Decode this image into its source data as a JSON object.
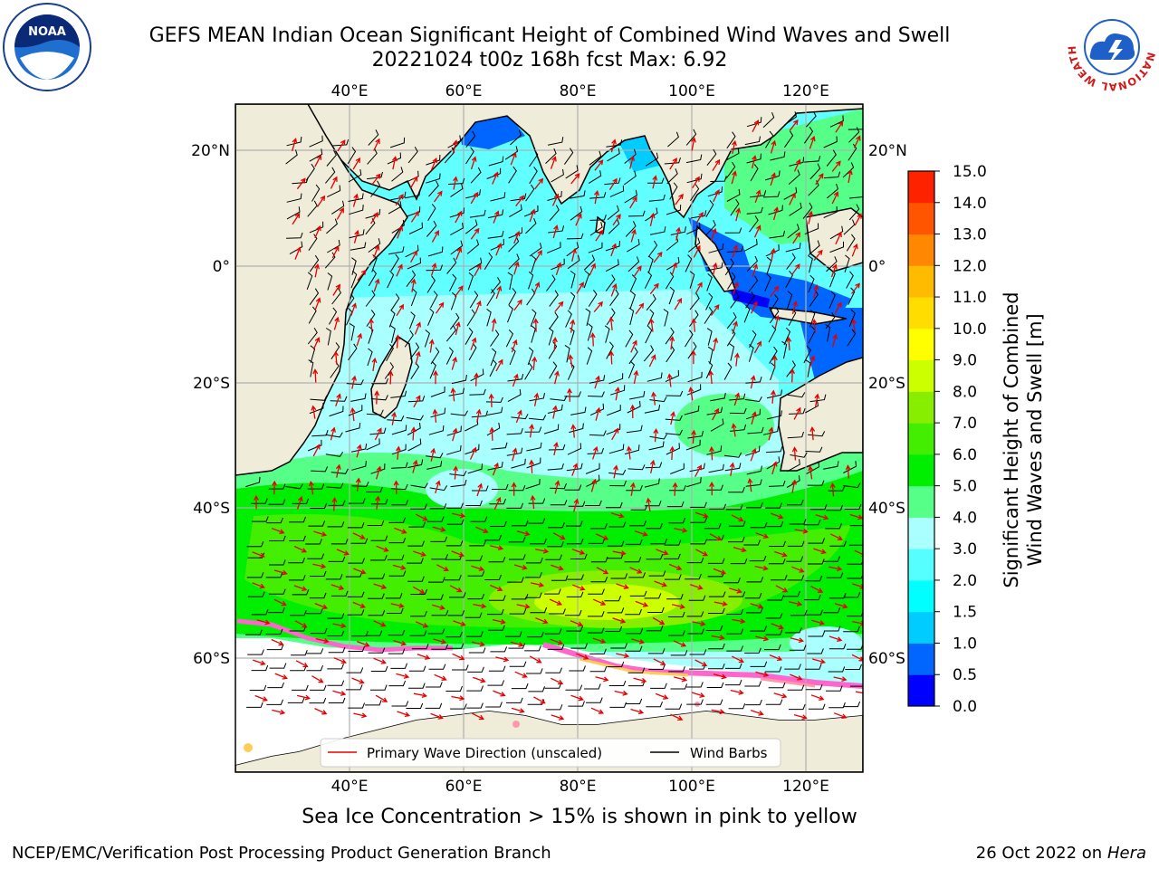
{
  "title": {
    "line1": "GEFS MEAN Indian Ocean Significant Height of Combined Wind Waves and Swell",
    "line2": "20221024 t00z 168h fcst   Max: 6.92"
  },
  "logos": {
    "left": {
      "icon": "noaa-logo",
      "text": "NOAA",
      "ring_text": "NATIONAL OCEANIC AND ATMOSPHERIC ADMINISTRATION · U.S. DEPARTMENT OF COMMERCE"
    },
    "right": {
      "icon": "nws-logo",
      "ring_text": "NATIONAL WEATHER SERVICE"
    }
  },
  "map": {
    "lon_labels": [
      "40°E",
      "60°E",
      "80°E",
      "100°E",
      "120°E"
    ],
    "lat_labels": [
      "20°N",
      "0°",
      "20°S",
      "40°S",
      "60°S"
    ],
    "gridlines": true,
    "land_color": "#efedd9",
    "ice_colors": [
      "#ff66cc",
      "#ff99aa",
      "#ffcc55"
    ],
    "wave_arrow_color": "#e60000",
    "wind_barb_color": "#000000"
  },
  "legend": {
    "position": "bottom-center",
    "items": [
      {
        "label": "Primary Wave Direction (unscaled)",
        "color": "#e60000"
      },
      {
        "label": "Wind Barbs",
        "color": "#000000"
      }
    ]
  },
  "colorbar": {
    "label_line1": "Significant Height of Combined",
    "label_line2": "Wind Waves and Swell [m]",
    "ticks": [
      "0.0",
      "0.5",
      "1.0",
      "1.5",
      "2.0",
      "3.0",
      "4.0",
      "5.0",
      "6.0",
      "7.0",
      "8.0",
      "9.0",
      "10.0",
      "11.0",
      "12.0",
      "13.0",
      "14.0",
      "15.0"
    ],
    "colors": [
      "#0000ff",
      "#0066ff",
      "#00ccff",
      "#00ffff",
      "#55ffff",
      "#aaffff",
      "#55ff88",
      "#00ee00",
      "#44ee00",
      "#88ee00",
      "#ccff00",
      "#ffff00",
      "#ffdd00",
      "#ffbb00",
      "#ff8800",
      "#ff5500",
      "#ff2200",
      "#ff0000"
    ]
  },
  "footer": {
    "ice_note": "Sea Ice Concentration > 15% is shown in pink to yellow",
    "credit": "NCEP/EMC/Verification Post Processing Product Generation Branch",
    "date": "26 Oct 2022 on",
    "machine": "Hera"
  }
}
